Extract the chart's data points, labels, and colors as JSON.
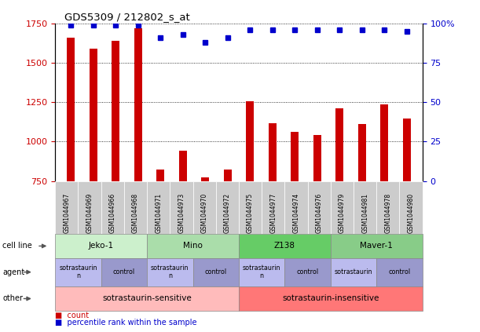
{
  "title": "GDS5309 / 212802_s_at",
  "samples": [
    "GSM1044967",
    "GSM1044969",
    "GSM1044966",
    "GSM1044968",
    "GSM1044971",
    "GSM1044973",
    "GSM1044970",
    "GSM1044972",
    "GSM1044975",
    "GSM1044977",
    "GSM1044974",
    "GSM1044976",
    "GSM1044979",
    "GSM1044981",
    "GSM1044978",
    "GSM1044980"
  ],
  "counts": [
    1660,
    1590,
    1640,
    1720,
    820,
    940,
    775,
    820,
    1255,
    1115,
    1060,
    1040,
    1210,
    1110,
    1235,
    1145
  ],
  "percentiles": [
    99,
    99,
    99,
    99,
    91,
    93,
    88,
    91,
    96,
    96,
    96,
    96,
    96,
    96,
    96,
    95
  ],
  "bar_color": "#cc0000",
  "dot_color": "#0000cc",
  "ylim_left": [
    750,
    1750
  ],
  "ylim_right": [
    0,
    100
  ],
  "yticks_left": [
    750,
    1000,
    1250,
    1500,
    1750
  ],
  "yticks_right": [
    0,
    25,
    50,
    75,
    100
  ],
  "cell_lines": [
    {
      "label": "Jeko-1",
      "start": 0,
      "end": 4,
      "color": "#ccf0cc"
    },
    {
      "label": "Mino",
      "start": 4,
      "end": 8,
      "color": "#aaddaa"
    },
    {
      "label": "Z138",
      "start": 8,
      "end": 12,
      "color": "#66cc66"
    },
    {
      "label": "Maver-1",
      "start": 12,
      "end": 16,
      "color": "#88cc88"
    }
  ],
  "agents": [
    {
      "label": "sotrastaurin\nn",
      "start": 0,
      "end": 2,
      "color": "#bbbbee"
    },
    {
      "label": "control",
      "start": 2,
      "end": 4,
      "color": "#9999cc"
    },
    {
      "label": "sotrastaurin\nn",
      "start": 4,
      "end": 6,
      "color": "#bbbbee"
    },
    {
      "label": "control",
      "start": 6,
      "end": 8,
      "color": "#9999cc"
    },
    {
      "label": "sotrastaurin\nn",
      "start": 8,
      "end": 10,
      "color": "#bbbbee"
    },
    {
      "label": "control",
      "start": 10,
      "end": 12,
      "color": "#9999cc"
    },
    {
      "label": "sotrastaurin",
      "start": 12,
      "end": 14,
      "color": "#bbbbee"
    },
    {
      "label": "control",
      "start": 14,
      "end": 16,
      "color": "#9999cc"
    }
  ],
  "others": [
    {
      "label": "sotrastaurin-sensitive",
      "start": 0,
      "end": 8,
      "color": "#ffbbbb"
    },
    {
      "label": "sotrastaurin-insensitive",
      "start": 8,
      "end": 16,
      "color": "#ff7777"
    }
  ],
  "row_labels": [
    "cell line",
    "agent",
    "other"
  ],
  "legend_items": [
    {
      "label": "count",
      "color": "#cc0000"
    },
    {
      "label": "percentile rank within the sample",
      "color": "#0000cc"
    }
  ],
  "tick_color_left": "#cc0000",
  "tick_color_right": "#0000cc",
  "xtick_bg_color": "#cccccc"
}
